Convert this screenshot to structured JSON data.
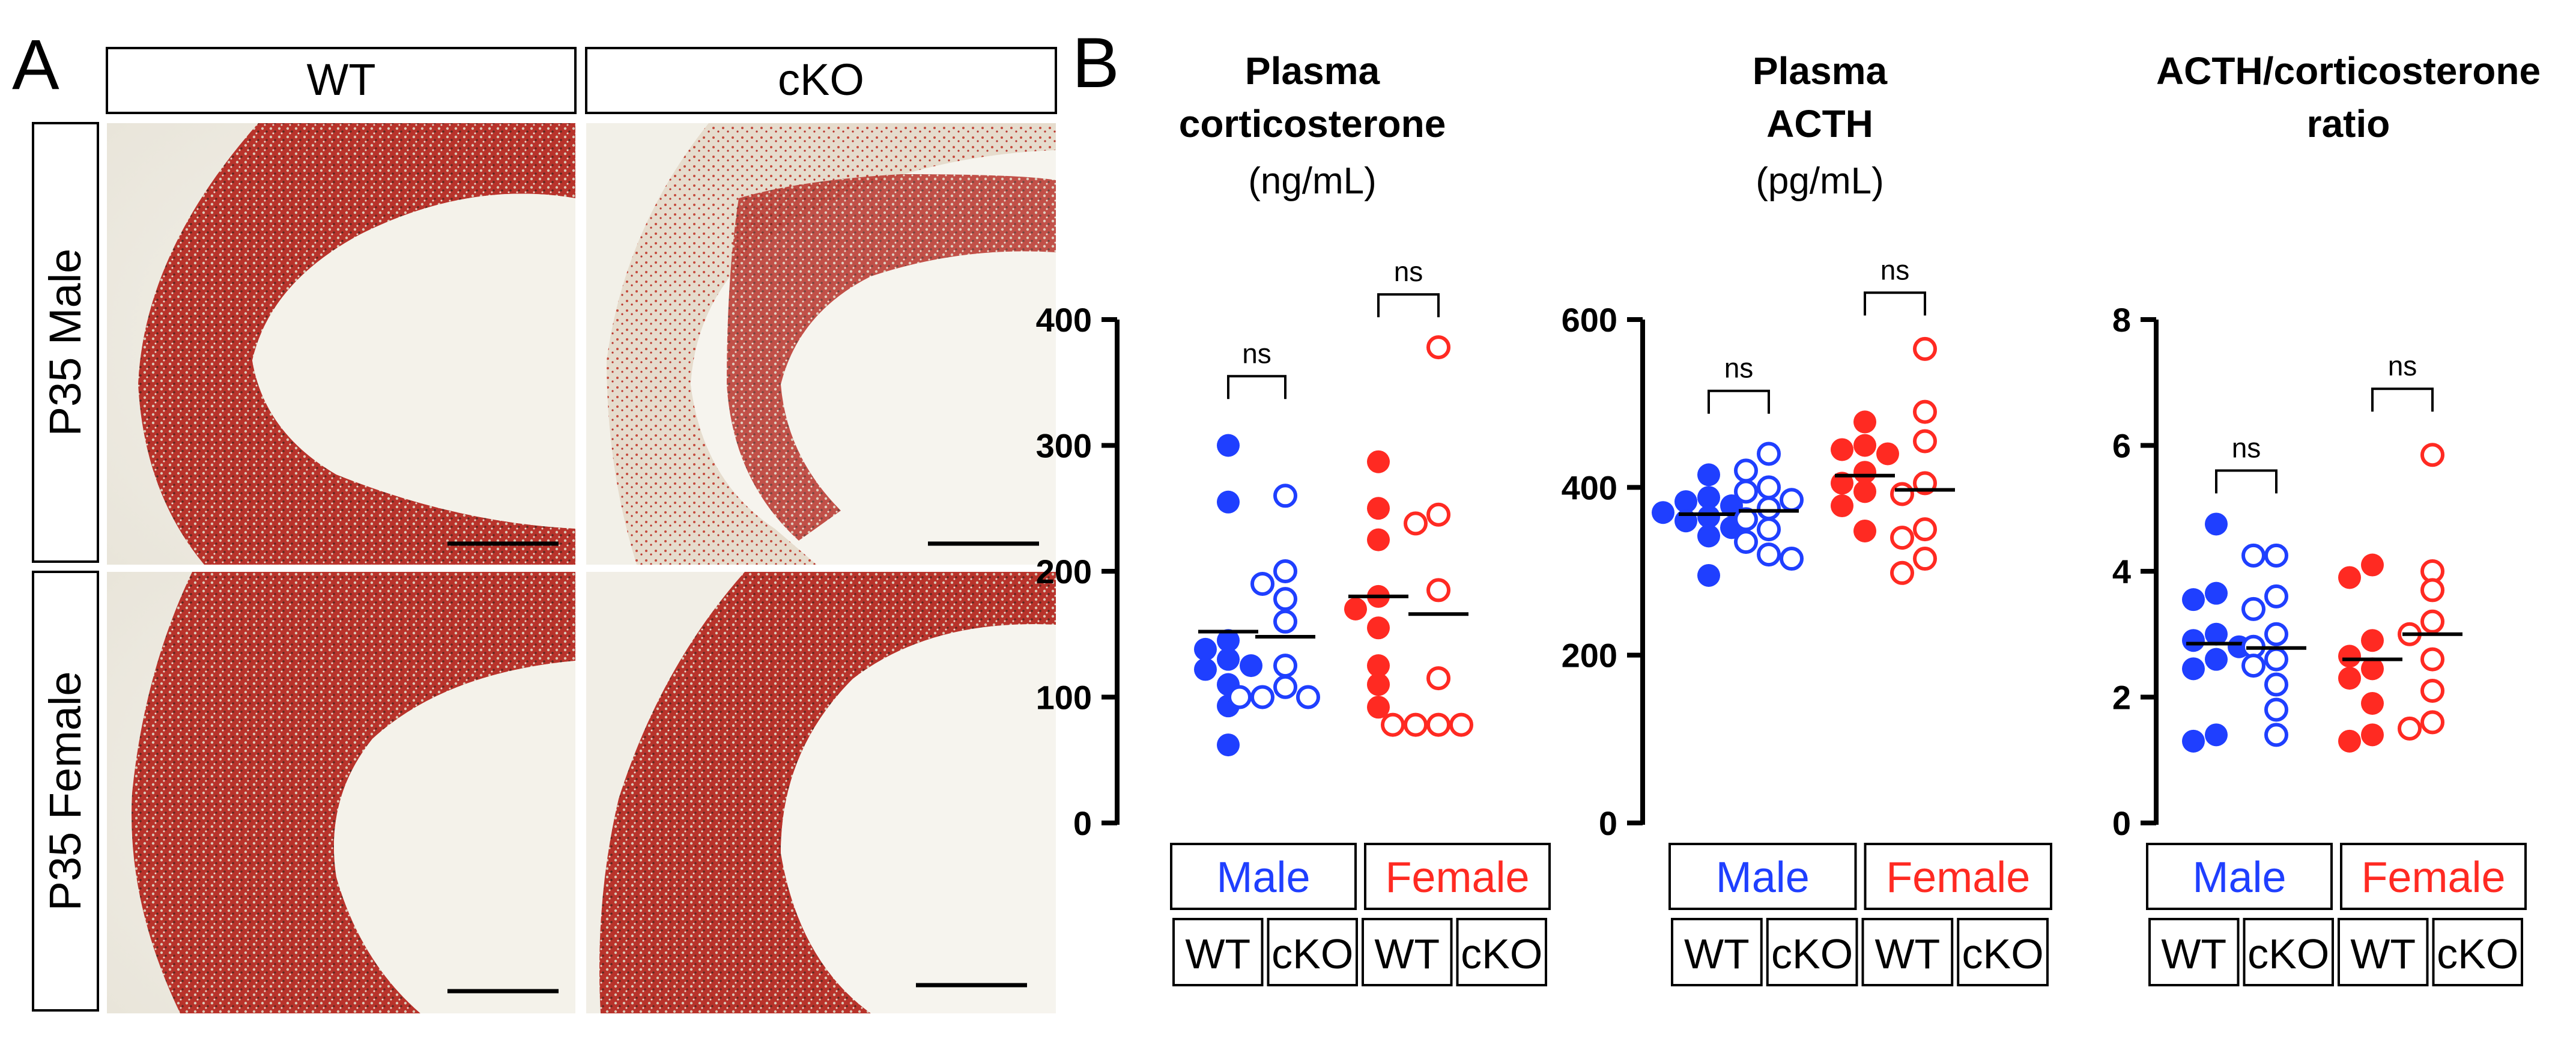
{
  "panel_a": {
    "letter": "A",
    "columns": [
      "WT",
      "cKO"
    ],
    "rows": [
      "P35 Male",
      "P35 Female"
    ]
  },
  "panel_b": {
    "letter": "B"
  },
  "colors": {
    "male": "#1f3fff",
    "female": "#ff2a22",
    "stain_red": "#b8332b",
    "tissue_bg": "#ece9df"
  },
  "chart_data": [
    {
      "type": "scatter",
      "title_lines": [
        "Plasma",
        "corticosterone"
      ],
      "unit": "(ng/mL)",
      "ylim": [
        0,
        400
      ],
      "yticks": [
        0,
        100,
        200,
        300,
        400
      ],
      "sex_labels": [
        "Male",
        "Female"
      ],
      "genotype_labels": [
        "WT",
        "cKO",
        "WT",
        "cKO"
      ],
      "brackets": [
        {
          "between": [
            0,
            1
          ],
          "label": "ns",
          "y": 355
        },
        {
          "between": [
            2,
            3
          ],
          "label": "ns",
          "y": 420
        }
      ],
      "groups": [
        {
          "sex": "male",
          "genotype": "WT",
          "filled": true,
          "mean": 152,
          "values": [
            300,
            255,
            145,
            138,
            130,
            125,
            122,
            110,
            93,
            62
          ]
        },
        {
          "sex": "male",
          "genotype": "cKO",
          "filled": false,
          "mean": 148,
          "values": [
            260,
            200,
            190,
            178,
            160,
            125,
            108,
            100,
            100,
            100
          ]
        },
        {
          "sex": "female",
          "genotype": "WT",
          "filled": true,
          "mean": 180,
          "values": [
            287,
            250,
            225,
            180,
            170,
            155,
            125,
            110,
            92
          ]
        },
        {
          "sex": "female",
          "genotype": "cKO",
          "filled": false,
          "mean": 166,
          "values": [
            378,
            245,
            238,
            185,
            115,
            78,
            78,
            78,
            78
          ]
        }
      ]
    },
    {
      "type": "scatter",
      "title_lines": [
        "Plasma",
        "ACTH"
      ],
      "unit": "(pg/mL)",
      "ylim": [
        0,
        600
      ],
      "yticks": [
        0,
        200,
        400,
        600
      ],
      "sex_labels": [
        "Male",
        "Female"
      ],
      "genotype_labels": [
        "WT",
        "cKO",
        "WT",
        "cKO"
      ],
      "brackets": [
        {
          "between": [
            0,
            1
          ],
          "label": "ns",
          "y": 515
        },
        {
          "between": [
            2,
            3
          ],
          "label": "ns",
          "y": 632
        }
      ],
      "groups": [
        {
          "sex": "male",
          "genotype": "WT",
          "filled": true,
          "mean": 368,
          "values": [
            415,
            388,
            383,
            378,
            370,
            365,
            360,
            352,
            342,
            295
          ]
        },
        {
          "sex": "male",
          "genotype": "cKO",
          "filled": false,
          "mean": 372,
          "values": [
            440,
            420,
            400,
            395,
            385,
            375,
            362,
            350,
            335,
            320,
            315
          ]
        },
        {
          "sex": "female",
          "genotype": "WT",
          "filled": true,
          "mean": 414,
          "values": [
            478,
            450,
            445,
            440,
            418,
            405,
            395,
            378,
            348
          ]
        },
        {
          "sex": "female",
          "genotype": "cKO",
          "filled": false,
          "mean": 397,
          "values": [
            565,
            490,
            455,
            405,
            392,
            350,
            340,
            315,
            298
          ]
        }
      ]
    },
    {
      "type": "scatter",
      "title_lines": [
        "ACTH/corticosterone",
        "ratio"
      ],
      "unit": "",
      "ylim": [
        0,
        8
      ],
      "yticks": [
        0,
        2,
        4,
        6,
        8
      ],
      "sex_labels": [
        "Male",
        "Female"
      ],
      "genotype_labels": [
        "WT",
        "cKO",
        "WT",
        "cKO"
      ],
      "brackets": [
        {
          "between": [
            0,
            1
          ],
          "label": "ns",
          "y": 5.6
        },
        {
          "between": [
            2,
            3
          ],
          "label": "ns",
          "y": 6.9
        }
      ],
      "groups": [
        {
          "sex": "male",
          "genotype": "WT",
          "filled": true,
          "mean": 2.85,
          "values": [
            4.75,
            3.65,
            3.55,
            3.0,
            2.9,
            2.8,
            2.6,
            2.45,
            1.4,
            1.3
          ]
        },
        {
          "sex": "male",
          "genotype": "cKO",
          "filled": false,
          "mean": 2.78,
          "values": [
            4.25,
            4.25,
            3.6,
            3.4,
            3.0,
            2.8,
            2.6,
            2.5,
            2.2,
            1.8,
            1.4
          ]
        },
        {
          "sex": "female",
          "genotype": "WT",
          "filled": true,
          "mean": 2.6,
          "values": [
            4.1,
            3.9,
            2.9,
            2.65,
            2.45,
            2.3,
            1.9,
            1.4,
            1.3
          ]
        },
        {
          "sex": "female",
          "genotype": "cKO",
          "filled": false,
          "mean": 3.0,
          "values": [
            5.85,
            4.0,
            3.7,
            3.2,
            3.0,
            2.6,
            2.1,
            1.6,
            1.5
          ]
        }
      ]
    }
  ]
}
